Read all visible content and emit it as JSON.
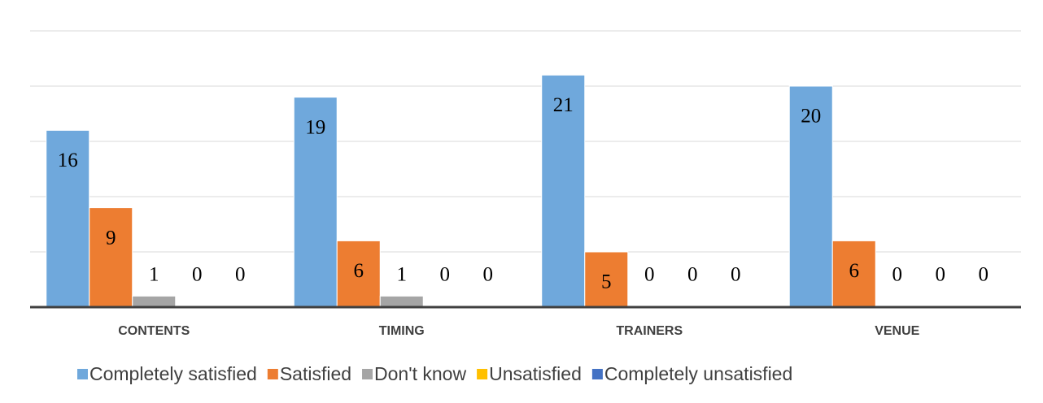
{
  "chart_data": {
    "type": "bar",
    "categories": [
      "CONTENTS",
      "TIMING",
      "TRAINERS",
      "VENUE"
    ],
    "series": [
      {
        "name": "Completely satisfied",
        "color": "#6fa8dc",
        "values": [
          16,
          19,
          21,
          20
        ]
      },
      {
        "name": "Satisfied",
        "color": "#ed7d31",
        "values": [
          9,
          6,
          5,
          6
        ]
      },
      {
        "name": "Don't know",
        "color": "#a5a5a5",
        "values": [
          1,
          1,
          0,
          0
        ]
      },
      {
        "name": "Unsatisfied",
        "color": "#ffc000",
        "values": [
          0,
          0,
          0,
          0
        ]
      },
      {
        "name": "Completely unsatisfied",
        "color": "#4472c4",
        "values": [
          0,
          0,
          0,
          0
        ]
      }
    ],
    "ylim": [
      0,
      25
    ],
    "yticks": [
      0,
      5,
      10,
      15,
      20,
      25
    ],
    "grid": true,
    "legend": "bottom"
  }
}
